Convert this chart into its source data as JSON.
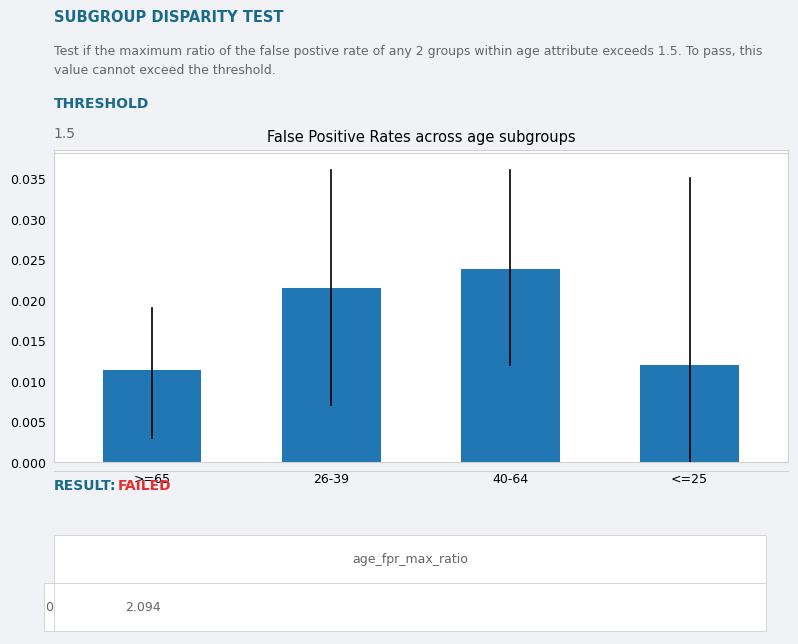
{
  "title": "SUBGROUP DISPARITY TEST",
  "description": "Test if the maximum ratio of the false postive rate of any 2 groups within age attribute exceeds 1.5. To pass, this\nvalue cannot exceed the threshold.",
  "threshold_label": "THRESHOLD",
  "threshold_value": "1.5",
  "chart_title": "False Positive Rates across age subgroups",
  "categories": [
    ">=65",
    "26-39",
    "40-64",
    "<=25"
  ],
  "bar_values": [
    0.0114,
    0.0215,
    0.0238,
    0.012
  ],
  "error_low": [
    0.003,
    0.007,
    0.012,
    0.0
  ],
  "error_high": [
    0.019,
    0.036,
    0.036,
    0.035
  ],
  "bar_color": "#2077b4",
  "ylim": [
    0,
    0.0385
  ],
  "yticks": [
    0.0,
    0.005,
    0.01,
    0.015,
    0.02,
    0.025,
    0.03,
    0.035
  ],
  "result_label": "RESULT:",
  "result_value": "FAILED",
  "result_color": "#e63030",
  "table_col": "age_fpr_max_ratio",
  "table_row_index": "0",
  "table_row_value": "2.094",
  "bg_color": "#f0f2f5",
  "chart_bg_color": "#ffffff",
  "title_color": "#1a6b8a",
  "desc_color": "#666666",
  "threshold_label_color": "#1a6b8a",
  "threshold_value_color": "#666666",
  "border_color": "#d0d0d0"
}
